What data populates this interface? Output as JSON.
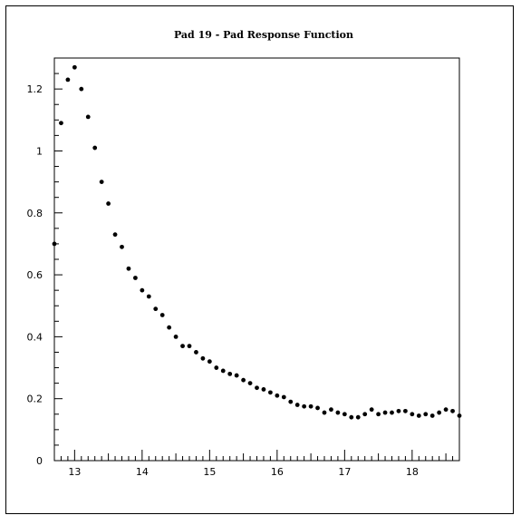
{
  "chart_data": {
    "type": "scatter",
    "title": "Pad 19 - Pad Response Function",
    "xlabel": "",
    "ylabel": "",
    "xlim": [
      12.7,
      18.7
    ],
    "ylim": [
      0,
      1.3
    ],
    "grid": false,
    "x_ticks": [
      13,
      14,
      15,
      16,
      17,
      18
    ],
    "y_ticks": [
      0,
      0.2,
      0.4,
      0.6,
      0.8,
      1,
      1.2
    ],
    "y_tick_labels": [
      "0",
      "0.2",
      "0.4",
      "0.6",
      "0.8",
      "1",
      "1.2"
    ],
    "x_tick_labels": [
      "13",
      "14",
      "15",
      "16",
      "17",
      "18"
    ],
    "series": [
      {
        "x": [
          12.7,
          12.8,
          12.9,
          13.0,
          13.1,
          13.2,
          13.3,
          13.4,
          13.5,
          13.6,
          13.7,
          13.8,
          13.9,
          14.0,
          14.1,
          14.2,
          14.3,
          14.4,
          14.5,
          14.6,
          14.7,
          14.8,
          14.9,
          15.0,
          15.1,
          15.2,
          15.3,
          15.4,
          15.5,
          15.6,
          15.7,
          15.8,
          15.9,
          16.0,
          16.1,
          16.2,
          16.3,
          16.4,
          16.5,
          16.6,
          16.7,
          16.8,
          16.9,
          17.0,
          17.1,
          17.2,
          17.3,
          17.4,
          17.5,
          17.6,
          17.7,
          17.8,
          17.9,
          18.0,
          18.1,
          18.2,
          18.3,
          18.4,
          18.5,
          18.6,
          18.7
        ],
        "y": [
          0.7,
          1.09,
          1.23,
          1.27,
          1.2,
          1.11,
          1.01,
          0.9,
          0.83,
          0.73,
          0.69,
          0.62,
          0.59,
          0.55,
          0.53,
          0.49,
          0.47,
          0.43,
          0.4,
          0.37,
          0.37,
          0.35,
          0.33,
          0.32,
          0.3,
          0.29,
          0.28,
          0.275,
          0.26,
          0.25,
          0.235,
          0.23,
          0.22,
          0.21,
          0.205,
          0.19,
          0.18,
          0.175,
          0.175,
          0.17,
          0.155,
          0.165,
          0.155,
          0.15,
          0.14,
          0.14,
          0.15,
          0.165,
          0.15,
          0.155,
          0.155,
          0.16,
          0.16,
          0.15,
          0.145,
          0.15,
          0.145,
          0.155,
          0.165,
          0.16,
          0.145
        ]
      }
    ]
  }
}
